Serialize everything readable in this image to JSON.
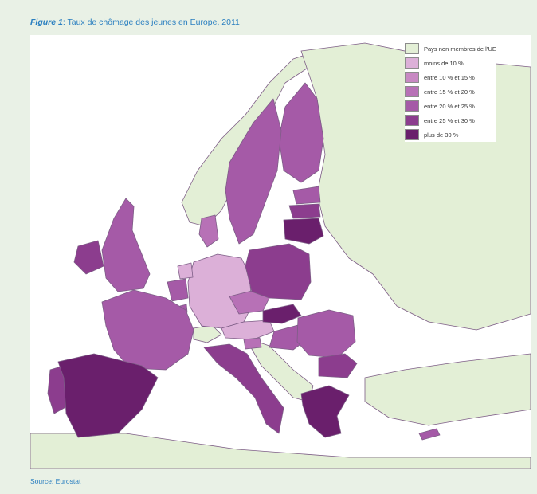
{
  "caption": {
    "figure_label": "Figure 1",
    "title": ": Taux de chômage des jeunes en Europe, 2011"
  },
  "source": "Source: Eurostat",
  "legend": [
    {
      "label": "Pays non membres de l’UE",
      "color": "#e3efd6"
    },
    {
      "label": "moins de 10 %",
      "color": "#dcb0d8"
    },
    {
      "label": "entre 10 % et 15 %",
      "color": "#c889c3"
    },
    {
      "label": "entre 15 % et 20 %",
      "color": "#b771b6"
    },
    {
      "label": "entre 20 % et 25 %",
      "color": "#a55aa7"
    },
    {
      "label": "entre 25 % et 30 %",
      "color": "#8c3d8e"
    },
    {
      "label": "plus de 30 %",
      "color": "#6a1f6c"
    }
  ],
  "map": {
    "sea_color": "#ffffff",
    "border_color": "#7d5d86",
    "regions": [
      {
        "name": "Iceland-Norway-nonEU",
        "cls": 0
      },
      {
        "name": "Eastern-nonEU",
        "cls": 0
      },
      {
        "name": "Balkans-nonEU",
        "cls": 0
      },
      {
        "name": "Turkey-nonEU",
        "cls": 0
      },
      {
        "name": "North-Africa-nonEU",
        "cls": 0
      },
      {
        "name": "Switzerland-nonEU",
        "cls": 0
      },
      {
        "name": "Germany",
        "cls": 1
      },
      {
        "name": "Austria",
        "cls": 1
      },
      {
        "name": "Netherlands",
        "cls": 1
      },
      {
        "name": "Denmark",
        "cls": 3
      },
      {
        "name": "Czech Republic",
        "cls": 3
      },
      {
        "name": "Slovenia",
        "cls": 3
      },
      {
        "name": "Luxembourg",
        "cls": 4
      },
      {
        "name": "Finland",
        "cls": 4
      },
      {
        "name": "Belgium",
        "cls": 4
      },
      {
        "name": "Estonia",
        "cls": 4
      },
      {
        "name": "United Kingdom",
        "cls": 4
      },
      {
        "name": "Sweden",
        "cls": 4
      },
      {
        "name": "France",
        "cls": 4
      },
      {
        "name": "Hungary",
        "cls": 4
      },
      {
        "name": "Cyprus",
        "cls": 4
      },
      {
        "name": "Romania",
        "cls": 4
      },
      {
        "name": "Poland",
        "cls": 5
      },
      {
        "name": "Ireland",
        "cls": 5
      },
      {
        "name": "Latvia",
        "cls": 5
      },
      {
        "name": "Portugal",
        "cls": 5
      },
      {
        "name": "Italy",
        "cls": 5
      },
      {
        "name": "Bulgaria",
        "cls": 5
      },
      {
        "name": "Lithuania",
        "cls": 6
      },
      {
        "name": "Slovakia",
        "cls": 6
      },
      {
        "name": "Greece",
        "cls": 6
      },
      {
        "name": "Spain",
        "cls": 6
      }
    ]
  }
}
